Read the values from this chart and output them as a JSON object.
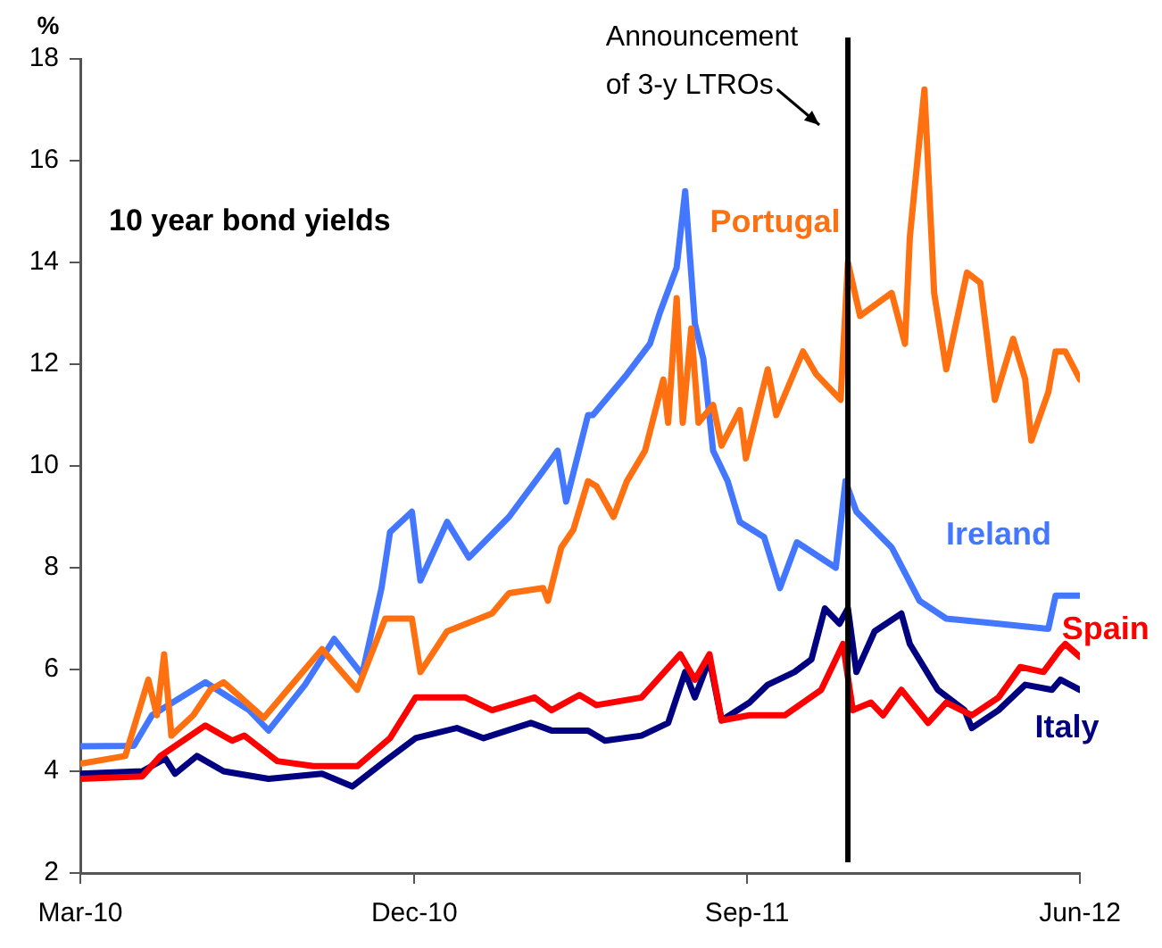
{
  "chart_data": {
    "type": "line",
    "title": "10 year bond yields",
    "ylabel": "%",
    "xlim": [
      "2010-03-01",
      "2012-06-01"
    ],
    "xticks": [
      {
        "value": "2010-03-01",
        "label": "Mar-10"
      },
      {
        "value": "2010-12-01",
        "label": "Dec-10"
      },
      {
        "value": "2011-09-01",
        "label": "Sep-11"
      },
      {
        "value": "2012-06-01",
        "label": "Jun-12"
      }
    ],
    "ylim": [
      2,
      18
    ],
    "yticks": [
      2,
      4,
      6,
      8,
      10,
      12,
      14,
      16,
      18
    ],
    "grid": false,
    "legend": false,
    "marker": "none",
    "line_style": "solid",
    "series": [
      {
        "name": "Portugal",
        "color": "#ff7010",
        "x": [
          "2010-03-01",
          "2010-04-07",
          "2010-04-26",
          "2010-05-03",
          "2010-05-09",
          "2010-05-15",
          "2010-06-02",
          "2010-06-16",
          "2010-06-27",
          "2010-07-30",
          "2010-09-16",
          "2010-10-15",
          "2010-11-07",
          "2010-11-29",
          "2010-12-06",
          "2010-12-28",
          "2011-02-03",
          "2011-02-17",
          "2011-03-17",
          "2011-03-21",
          "2011-04-01",
          "2011-04-11",
          "2011-04-23",
          "2011-04-30",
          "2011-05-14",
          "2011-05-25",
          "2011-06-09",
          "2011-06-24",
          "2011-06-28",
          "2011-07-05",
          "2011-07-10",
          "2011-07-17",
          "2011-07-23",
          "2011-08-04",
          "2011-08-11",
          "2011-08-26",
          "2011-08-31",
          "2011-09-18",
          "2011-09-25",
          "2011-10-17",
          "2011-10-28",
          "2011-11-17",
          "2011-11-23",
          "2011-12-03",
          "2011-12-29",
          "2012-01-09",
          "2012-01-13",
          "2012-01-25",
          "2012-02-02",
          "2012-02-12",
          "2012-02-29",
          "2012-03-11",
          "2012-03-23",
          "2012-04-07",
          "2012-04-17",
          "2012-04-22",
          "2012-05-06",
          "2012-05-12",
          "2012-05-20",
          "2012-06-01"
        ],
        "values": [
          4.15,
          4.3,
          5.8,
          5.1,
          6.3,
          4.7,
          5.1,
          5.6,
          5.75,
          5.05,
          6.4,
          5.6,
          7.0,
          7.0,
          5.95,
          6.75,
          7.1,
          7.5,
          7.6,
          7.35,
          8.4,
          8.75,
          9.7,
          9.6,
          9.0,
          9.7,
          10.3,
          11.7,
          10.85,
          13.3,
          10.85,
          12.7,
          10.85,
          11.2,
          10.4,
          11.1,
          10.15,
          11.9,
          11.0,
          12.25,
          11.8,
          11.3,
          14.0,
          12.95,
          13.4,
          12.4,
          14.5,
          17.4,
          13.4,
          11.9,
          13.8,
          13.6,
          11.3,
          12.5,
          11.7,
          10.5,
          11.45,
          12.25,
          12.25,
          11.7
        ]
      },
      {
        "name": "Ireland",
        "color": "#4477ff",
        "x": [
          "2010-03-01",
          "2010-04-14",
          "2010-04-29",
          "2010-06-12",
          "2010-07-18",
          "2010-08-03",
          "2010-09-02",
          "2010-09-26",
          "2010-10-19",
          "2010-11-04",
          "2010-11-11",
          "2010-11-29",
          "2010-12-06",
          "2010-12-28",
          "2011-01-15",
          "2011-02-17",
          "2011-03-17",
          "2011-03-29",
          "2011-04-05",
          "2011-04-23",
          "2011-04-27",
          "2011-05-25",
          "2011-06-13",
          "2011-06-21",
          "2011-07-05",
          "2011-07-12",
          "2011-07-20",
          "2011-07-27",
          "2011-08-04",
          "2011-08-16",
          "2011-08-26",
          "2011-09-15",
          "2011-09-28",
          "2011-10-12",
          "2011-11-13",
          "2011-11-21",
          "2011-11-30",
          "2011-12-29",
          "2012-01-21",
          "2012-02-12",
          "2012-03-26",
          "2012-05-06",
          "2012-05-12",
          "2012-06-01"
        ],
        "values": [
          4.49,
          4.5,
          5.1,
          5.75,
          5.2,
          4.8,
          5.7,
          6.6,
          5.9,
          7.6,
          8.7,
          9.1,
          7.75,
          8.9,
          8.2,
          9.0,
          9.9,
          10.3,
          9.3,
          11.0,
          11.0,
          11.8,
          12.4,
          13.0,
          13.9,
          15.4,
          12.8,
          12.1,
          10.3,
          9.7,
          8.9,
          8.6,
          7.6,
          8.5,
          8.0,
          9.7,
          9.1,
          8.4,
          7.35,
          7.0,
          6.9,
          6.8,
          7.45,
          7.45
        ]
      },
      {
        "name": "Spain",
        "color": "#ff0000",
        "x": [
          "2010-03-01",
          "2010-04-21",
          "2010-05-06",
          "2010-06-12",
          "2010-07-04",
          "2010-07-14",
          "2010-08-10",
          "2010-09-09",
          "2010-10-15",
          "2010-11-11",
          "2010-12-02",
          "2011-01-12",
          "2011-02-03",
          "2011-03-10",
          "2011-03-24",
          "2011-04-16",
          "2011-04-30",
          "2011-06-06",
          "2011-07-08",
          "2011-07-20",
          "2011-08-01",
          "2011-08-11",
          "2011-09-03",
          "2011-10-02",
          "2011-11-01",
          "2011-11-19",
          "2011-11-27",
          "2011-12-12",
          "2011-12-22",
          "2012-01-06",
          "2012-01-28",
          "2012-02-12",
          "2012-03-04",
          "2012-03-26",
          "2012-04-13",
          "2012-05-02",
          "2012-05-16",
          "2012-05-20",
          "2012-06-01"
        ],
        "values": [
          3.85,
          3.9,
          4.3,
          4.9,
          4.6,
          4.7,
          4.2,
          4.1,
          4.1,
          4.65,
          5.45,
          5.45,
          5.2,
          5.45,
          5.2,
          5.5,
          5.3,
          5.45,
          6.3,
          5.8,
          6.3,
          5.0,
          5.1,
          5.1,
          5.6,
          6.5,
          5.2,
          5.35,
          5.1,
          5.6,
          4.95,
          5.35,
          5.1,
          5.45,
          6.05,
          5.95,
          6.4,
          6.5,
          6.25
        ]
      },
      {
        "name": "Italy",
        "color": "#000080",
        "x": [
          "2010-03-01",
          "2010-04-21",
          "2010-05-10",
          "2010-05-18",
          "2010-06-05",
          "2010-06-27",
          "2010-08-03",
          "2010-09-16",
          "2010-10-11",
          "2010-11-07",
          "2010-12-02",
          "2011-01-05",
          "2011-01-27",
          "2011-03-07",
          "2011-03-24",
          "2011-04-23",
          "2011-05-07",
          "2011-06-06",
          "2011-06-28",
          "2011-07-12",
          "2011-07-20",
          "2011-08-01",
          "2011-08-11",
          "2011-09-03",
          "2011-09-18",
          "2011-10-10",
          "2011-10-24",
          "2011-11-04",
          "2011-11-16",
          "2011-11-23",
          "2011-11-30",
          "2011-12-15",
          "2012-01-06",
          "2012-01-13",
          "2012-02-05",
          "2012-02-27",
          "2012-03-04",
          "2012-03-26",
          "2012-04-17",
          "2012-05-09",
          "2012-05-16",
          "2012-06-01"
        ],
        "values": [
          3.95,
          4.0,
          4.25,
          3.95,
          4.3,
          4.0,
          3.85,
          3.95,
          3.7,
          4.2,
          4.65,
          4.85,
          4.65,
          4.95,
          4.8,
          4.8,
          4.6,
          4.7,
          4.95,
          5.95,
          5.45,
          6.2,
          5.0,
          5.35,
          5.7,
          5.95,
          6.2,
          7.2,
          6.9,
          7.2,
          5.95,
          6.75,
          7.1,
          6.5,
          5.6,
          5.2,
          4.85,
          5.2,
          5.7,
          5.6,
          5.8,
          5.6
        ]
      }
    ],
    "ref_lines": [
      {
        "axis": "x",
        "value": "2011-11-23",
        "label": "Announcement\nof 3-y LTROs",
        "color": "#000000"
      }
    ]
  }
}
